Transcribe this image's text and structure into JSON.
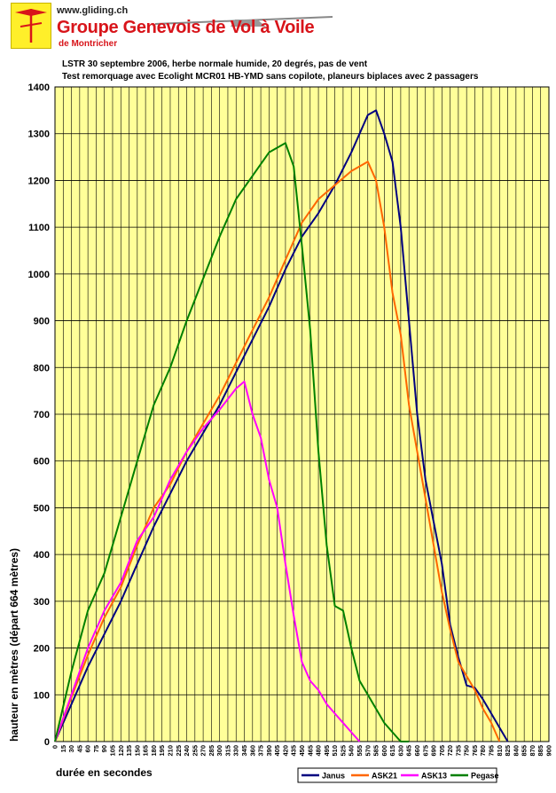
{
  "header": {
    "site_url": "www.gliding.ch",
    "club_name": "Groupe Genevois de Vol à Voile",
    "club_sub": "de Montricher"
  },
  "subtitle_line1": "LSTR 30 septembre 2006, herbe normale humide, 20 degrés, pas de vent",
  "subtitle_line2": "Test remorquage avec Ecolight MCR01 HB-YMD sans copilote, planeurs biplaces avec 2 passagers",
  "colors": {
    "plot_background": "#ffff99",
    "grid": "#000000",
    "brand_red": "#d8141a"
  },
  "chart_data": {
    "type": "line",
    "title": "",
    "xlabel": "durée en secondes",
    "ylabel": "hauteur en mètres (départ 664 mètres)",
    "xlim": [
      0,
      900
    ],
    "ylim": [
      0,
      1400
    ],
    "x_ticks": [
      0,
      15,
      30,
      45,
      60,
      75,
      90,
      105,
      120,
      135,
      150,
      165,
      180,
      195,
      210,
      225,
      240,
      255,
      270,
      285,
      300,
      315,
      330,
      345,
      360,
      375,
      390,
      405,
      420,
      435,
      450,
      465,
      480,
      495,
      510,
      525,
      540,
      555,
      570,
      585,
      600,
      615,
      630,
      645,
      660,
      675,
      690,
      705,
      720,
      735,
      750,
      765,
      780,
      795,
      810,
      825,
      840,
      855,
      870,
      885,
      900
    ],
    "y_ticks": [
      0,
      100,
      200,
      300,
      400,
      500,
      600,
      700,
      800,
      900,
      1000,
      1100,
      1200,
      1300,
      1400
    ],
    "grid": true,
    "legend_position": "bottom-right",
    "series": [
      {
        "name": "Janus",
        "color": "#000080",
        "x": [
          0,
          30,
          60,
          90,
          120,
          150,
          180,
          210,
          240,
          270,
          300,
          330,
          360,
          390,
          420,
          450,
          480,
          510,
          540,
          570,
          585,
          600,
          615,
          630,
          645,
          660,
          675,
          690,
          705,
          720,
          735,
          750,
          765,
          780,
          795,
          810,
          825
        ],
        "y": [
          0,
          80,
          160,
          230,
          300,
          380,
          460,
          530,
          600,
          660,
          720,
          790,
          860,
          930,
          1010,
          1080,
          1130,
          1190,
          1260,
          1340,
          1350,
          1300,
          1240,
          1100,
          900,
          700,
          560,
          470,
          380,
          250,
          180,
          120,
          115,
          90,
          60,
          30,
          0
        ]
      },
      {
        "name": "ASK21",
        "color": "#ff6600",
        "x": [
          0,
          30,
          60,
          90,
          120,
          150,
          180,
          210,
          240,
          270,
          300,
          330,
          360,
          390,
          420,
          450,
          480,
          510,
          540,
          570,
          585,
          600,
          615,
          630,
          645,
          660,
          675,
          690,
          705,
          720,
          735,
          750,
          765,
          780,
          795,
          810
        ],
        "y": [
          0,
          95,
          185,
          265,
          330,
          420,
          500,
          550,
          620,
          680,
          740,
          810,
          880,
          950,
          1030,
          1110,
          1160,
          1190,
          1220,
          1240,
          1200,
          1100,
          960,
          870,
          720,
          620,
          520,
          420,
          320,
          240,
          170,
          140,
          110,
          70,
          40,
          0
        ]
      },
      {
        "name": "ASK13",
        "color": "#ff00ff",
        "x": [
          0,
          30,
          60,
          90,
          120,
          150,
          180,
          210,
          240,
          270,
          300,
          330,
          345,
          360,
          375,
          390,
          405,
          420,
          435,
          450,
          465,
          480,
          495,
          510,
          525,
          540,
          555
        ],
        "y": [
          0,
          100,
          200,
          280,
          340,
          430,
          480,
          560,
          620,
          670,
          710,
          755,
          770,
          700,
          650,
          560,
          500,
          380,
          270,
          170,
          130,
          110,
          80,
          60,
          40,
          20,
          0
        ]
      },
      {
        "name": "Pegase",
        "color": "#008000",
        "x": [
          0,
          30,
          60,
          90,
          120,
          150,
          180,
          210,
          240,
          270,
          300,
          330,
          360,
          390,
          420,
          435,
          450,
          465,
          480,
          495,
          510,
          525,
          540,
          555,
          570,
          585,
          600,
          615,
          630,
          645
        ],
        "y": [
          0,
          150,
          280,
          360,
          480,
          600,
          720,
          800,
          900,
          990,
          1080,
          1160,
          1210,
          1260,
          1280,
          1230,
          1060,
          880,
          620,
          420,
          290,
          280,
          200,
          130,
          100,
          70,
          40,
          20,
          0,
          0
        ]
      }
    ]
  }
}
